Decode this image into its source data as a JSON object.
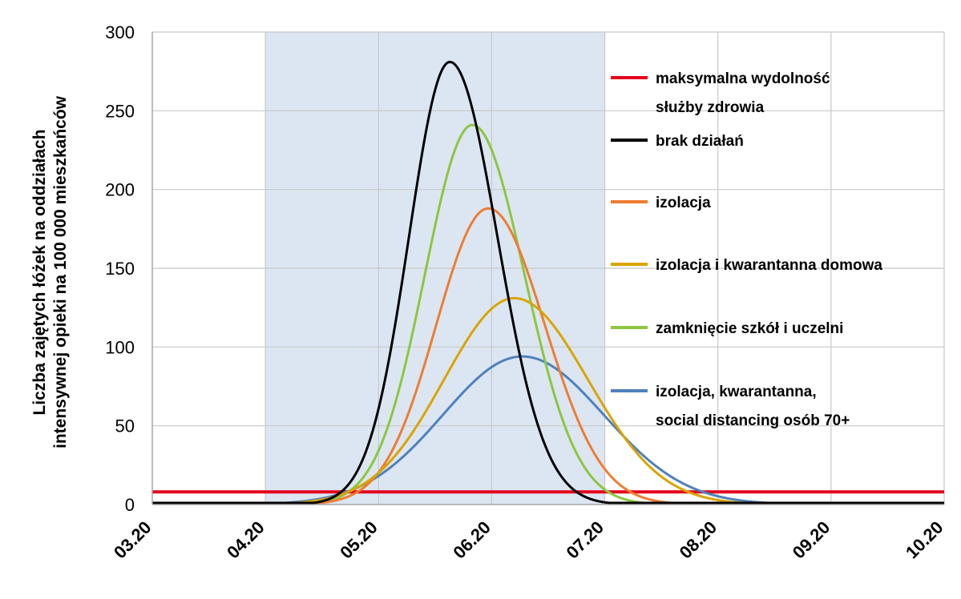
{
  "chart_data": {
    "type": "line",
    "ylabel_lines": [
      "Liczba zajętych łóżek na oddziałach",
      "intensywnej opieki na 100 000 mieszkańców"
    ],
    "x_ticks": [
      "03.20",
      "04.20",
      "05.20",
      "06.20",
      "07.20",
      "08.20",
      "09.20",
      "10.20"
    ],
    "ylim": [
      0,
      300
    ],
    "y_ticks": [
      0,
      50,
      100,
      150,
      200,
      250,
      300
    ],
    "grid": true,
    "shaded_region": {
      "from": "04.20",
      "to": "07.20",
      "color": "#dce6f2"
    },
    "capacity_line": {
      "value": 8,
      "color": "#e3001b"
    },
    "series": [
      {
        "name": "brak działań",
        "color": "#000000",
        "peak_x": 2.63,
        "peak_y": 281,
        "sigma_left": 0.36,
        "sigma_right": 0.42,
        "start": 0.85
      },
      {
        "name": "izolacja",
        "color": "#ed7d31",
        "peak_x": 2.97,
        "peak_y": 188,
        "sigma_left": 0.46,
        "sigma_right": 0.5,
        "start": 0.85
      },
      {
        "name": "izolacja i kwarantanna domowa",
        "color": "#d9a400",
        "peak_x": 3.2,
        "peak_y": 131,
        "sigma_left": 0.62,
        "sigma_right": 0.65,
        "start": 0.85
      },
      {
        "name": "zamknięcie szkół i uczelni",
        "color": "#8cc63f",
        "peak_x": 2.83,
        "peak_y": 241,
        "sigma_left": 0.42,
        "sigma_right": 0.46,
        "start": 0.85
      },
      {
        "name": "izolacja, kwarantanna, social distancing osób 70+",
        "color": "#4e81bd",
        "peak_x": 3.27,
        "peak_y": 94,
        "sigma_left": 0.7,
        "sigma_right": 0.72,
        "start": 0.85
      }
    ],
    "legend": {
      "placement": "right",
      "entries": [
        {
          "color": "#e3001b",
          "lines": [
            "maksymalna wydolność",
            "służby zdrowia"
          ]
        },
        {
          "color": "#000000",
          "lines": [
            "brak działań"
          ]
        },
        {
          "color": "#ed7d31",
          "lines": [
            "izolacja"
          ]
        },
        {
          "color": "#d9a400",
          "lines": [
            "izolacja i kwarantanna domowa"
          ]
        },
        {
          "color": "#8cc63f",
          "lines": [
            "zamknięcie szkół i uczelni"
          ]
        },
        {
          "color": "#4e81bd",
          "lines": [
            "izolacja, kwarantanna,",
            "social distancing osób 70+"
          ]
        }
      ]
    }
  }
}
